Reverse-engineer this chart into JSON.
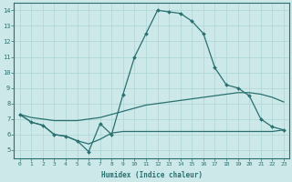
{
  "xlabel": "Humidex (Indice chaleur)",
  "bg_color": "#cce8e8",
  "grid_color": "#b0d8d8",
  "line_color": "#2a7070",
  "xlim": [
    -0.5,
    23.5
  ],
  "ylim": [
    4.5,
    14.5
  ],
  "xticks": [
    0,
    1,
    2,
    3,
    4,
    5,
    6,
    7,
    8,
    9,
    10,
    11,
    12,
    13,
    14,
    15,
    16,
    17,
    18,
    19,
    20,
    21,
    22,
    23
  ],
  "yticks": [
    5,
    6,
    7,
    8,
    9,
    10,
    11,
    12,
    13,
    14
  ],
  "line_main": {
    "x": [
      0,
      1,
      2,
      3,
      4,
      5,
      6,
      7,
      8,
      9,
      10,
      11,
      12,
      13,
      14,
      15,
      16,
      17,
      18,
      19,
      20,
      21,
      22,
      23
    ],
    "y": [
      7.3,
      6.8,
      6.6,
      6.0,
      5.9,
      5.6,
      4.9,
      6.7,
      6.0,
      8.6,
      11.0,
      12.5,
      14.0,
      13.9,
      13.8,
      13.3,
      12.5,
      10.3,
      9.2,
      9.0,
      8.5,
      7.0,
      6.5,
      6.3
    ]
  },
  "line_upper": {
    "x": [
      0,
      1,
      2,
      3,
      4,
      5,
      6,
      7,
      8,
      9,
      10,
      11,
      12,
      13,
      14,
      15,
      16,
      17,
      18,
      19,
      20,
      21,
      22,
      23
    ],
    "y": [
      7.3,
      7.1,
      7.0,
      6.9,
      6.9,
      6.9,
      7.0,
      7.1,
      7.3,
      7.5,
      7.7,
      7.9,
      8.0,
      8.1,
      8.2,
      8.3,
      8.4,
      8.5,
      8.6,
      8.7,
      8.7,
      8.6,
      8.4,
      8.1
    ]
  },
  "line_lower": {
    "x": [
      0,
      1,
      2,
      3,
      4,
      5,
      6,
      7,
      8,
      9,
      10,
      11,
      12,
      13,
      14,
      15,
      16,
      17,
      18,
      19,
      20,
      21,
      22,
      23
    ],
    "y": [
      7.3,
      6.8,
      6.6,
      6.0,
      5.9,
      5.6,
      5.4,
      5.7,
      6.1,
      6.2,
      6.2,
      6.2,
      6.2,
      6.2,
      6.2,
      6.2,
      6.2,
      6.2,
      6.2,
      6.2,
      6.2,
      6.2,
      6.2,
      6.3
    ]
  }
}
